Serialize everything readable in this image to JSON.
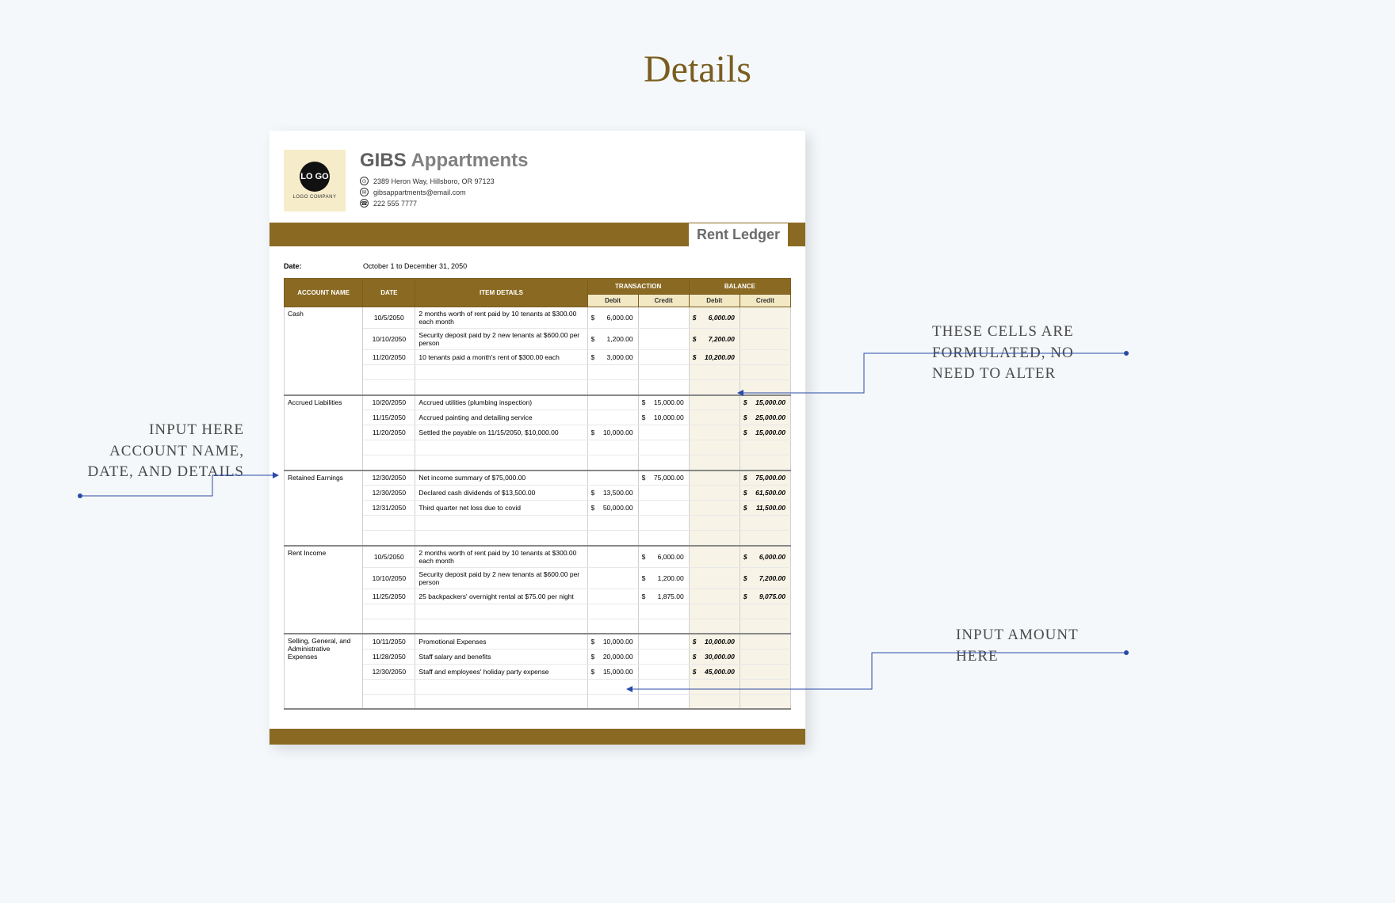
{
  "page_title": "Details",
  "logo": {
    "text": "LO\nGO",
    "caption": "LOGO COMPANY"
  },
  "company": {
    "name_bold": "GIBS",
    "name_rest": " Appartments",
    "address": "2389 Heron Way, Hillsboro, OR 97123",
    "email": "gibsappartments@email.com",
    "phone": "222 555 7777"
  },
  "banner_label": "Rent Ledger",
  "date_label": "Date:",
  "date_value": "October 1 to December 31, 2050",
  "headers": {
    "account": "ACCOUNT NAME",
    "date": "DATE",
    "details": "ITEM DETAILS",
    "transaction": "TRANSACTION",
    "balance": "BALANCE",
    "debit": "Debit",
    "credit": "Credit"
  },
  "sections": [
    {
      "account": "Cash",
      "rows": [
        {
          "date": "10/5/2050",
          "details": "2 months worth of rent paid by 10 tenants at $300.00 each month",
          "t_debit": "6,000.00",
          "t_credit": "",
          "b_debit": "6,000.00",
          "b_credit": ""
        },
        {
          "date": "10/10/2050",
          "details": "Security deposit paid by 2 new tenants at $600.00 per person",
          "t_debit": "1,200.00",
          "t_credit": "",
          "b_debit": "7,200.00",
          "b_credit": ""
        },
        {
          "date": "11/20/2050",
          "details": "10 tenants paid a month's rent of $300.00 each",
          "t_debit": "3,000.00",
          "t_credit": "",
          "b_debit": "10,200.00",
          "b_credit": ""
        }
      ]
    },
    {
      "account": "Accrued Liabilities",
      "rows": [
        {
          "date": "10/20/2050",
          "details": "Accrued utilities (plumbing inspection)",
          "t_debit": "",
          "t_credit": "15,000.00",
          "b_debit": "",
          "b_credit": "15,000.00"
        },
        {
          "date": "11/15/2050",
          "details": "Accrued painting and detailing service",
          "t_debit": "",
          "t_credit": "10,000.00",
          "b_debit": "",
          "b_credit": "25,000.00"
        },
        {
          "date": "11/20/2050",
          "details": "Settled the payable on 11/15/2050, $10,000.00",
          "t_debit": "10,000.00",
          "t_credit": "",
          "b_debit": "",
          "b_credit": "15,000.00"
        }
      ]
    },
    {
      "account": "Retained Earnings",
      "rows": [
        {
          "date": "12/30/2050",
          "details": "Net income summary of $75,000.00",
          "t_debit": "",
          "t_credit": "75,000.00",
          "b_debit": "",
          "b_credit": "75,000.00"
        },
        {
          "date": "12/30/2050",
          "details": "Declared cash dividends of $13,500.00",
          "t_debit": "13,500.00",
          "t_credit": "",
          "b_debit": "",
          "b_credit": "61,500.00"
        },
        {
          "date": "12/31/2050",
          "details": "Third quarter net loss due to covid",
          "t_debit": "50,000.00",
          "t_credit": "",
          "b_debit": "",
          "b_credit": "11,500.00"
        }
      ]
    },
    {
      "account": "Rent Income",
      "rows": [
        {
          "date": "10/5/2050",
          "details": "2 months worth of rent paid by 10 tenants at $300.00 each month",
          "t_debit": "",
          "t_credit": "6,000.00",
          "b_debit": "",
          "b_credit": "6,000.00"
        },
        {
          "date": "10/10/2050",
          "details": "Security deposit paid by 2 new tenants at $600.00 per person",
          "t_debit": "",
          "t_credit": "1,200.00",
          "b_debit": "",
          "b_credit": "7,200.00"
        },
        {
          "date": "11/25/2050",
          "details": "25 backpackers' overnight rental at $75.00 per night",
          "t_debit": "",
          "t_credit": "1,875.00",
          "b_debit": "",
          "b_credit": "9,075.00"
        }
      ]
    },
    {
      "account": "Selling, General, and Administrative Expenses",
      "rows": [
        {
          "date": "10/11/2050",
          "details": "Promotional Expenses",
          "t_debit": "10,000.00",
          "t_credit": "",
          "b_debit": "10,000.00",
          "b_credit": ""
        },
        {
          "date": "11/28/2050",
          "details": "Staff salary and benefits",
          "t_debit": "20,000.00",
          "t_credit": "",
          "b_debit": "30,000.00",
          "b_credit": ""
        },
        {
          "date": "12/30/2050",
          "details": "Staff and employees' holiday party expense",
          "t_debit": "15,000.00",
          "t_credit": "",
          "b_debit": "45,000.00",
          "b_credit": ""
        }
      ]
    }
  ],
  "callouts": {
    "left": "INPUT HERE ACCOUNT NAME, DATE, AND DETAILS",
    "right_top": "THESE CELLS ARE FORMULATED, NO NEED TO ALTER",
    "right_bottom": "INPUT AMOUNT HERE"
  },
  "colors": {
    "page_bg": "#f4f8fa",
    "title": "#7a5d1f",
    "brand": "#8a6a22",
    "sub_header_bg": "#f3e8c4",
    "balance_bg": "#f7f3e6",
    "logo_bg": "#f6ecc9",
    "connector": "#2b4aa8"
  }
}
